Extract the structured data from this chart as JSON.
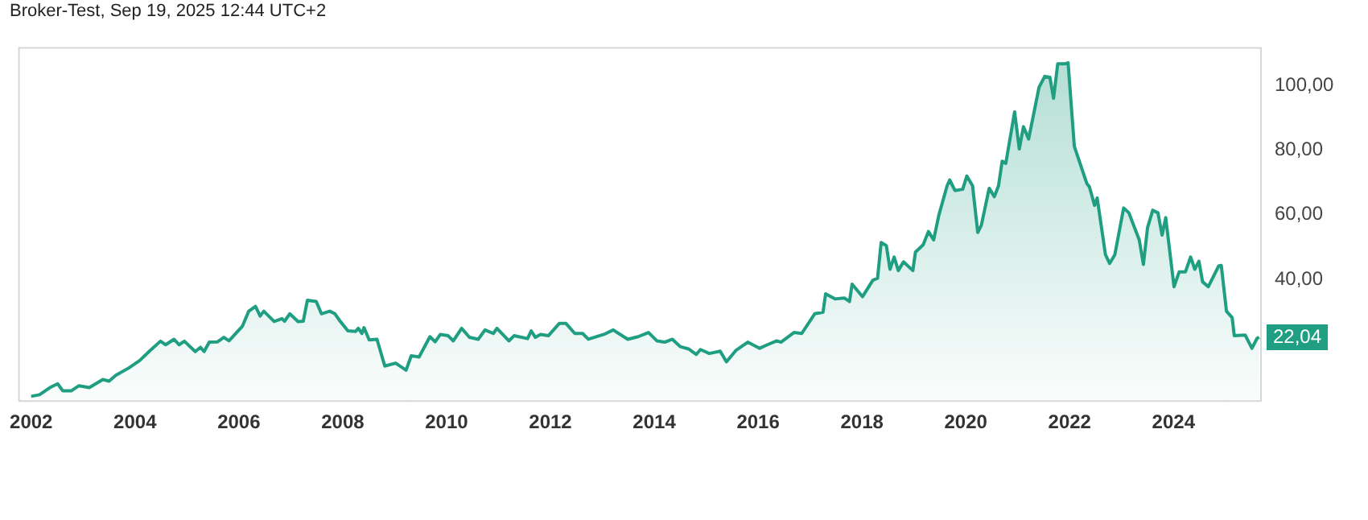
{
  "chart_data": {
    "type": "area",
    "title": "Broker-Test, Sep 19, 2025 12:44 UTC+2",
    "marker": "none",
    "xlim": [
      2001.75,
      2025.7
    ],
    "xticks": [
      2002,
      2004,
      2006,
      2008,
      2010,
      2012,
      2014,
      2016,
      2018,
      2020,
      2022,
      2024
    ],
    "ylim": [
      2,
      112
    ],
    "yticks": [
      {
        "value": 40,
        "label": "40,00"
      },
      {
        "value": 60,
        "label": "60,00"
      },
      {
        "value": 80,
        "label": "80,00"
      },
      {
        "value": 100,
        "label": "100,00"
      }
    ],
    "x": [
      2002.0,
      2002.16,
      2002.36,
      2002.51,
      2002.61,
      2002.77,
      2002.92,
      2003.12,
      2003.38,
      2003.5,
      2003.63,
      2003.88,
      2004.09,
      2004.29,
      2004.49,
      2004.59,
      2004.75,
      2004.85,
      2004.95,
      2005.16,
      2005.26,
      2005.33,
      2005.43,
      2005.59,
      2005.71,
      2005.81,
      2006.07,
      2006.19,
      2006.32,
      2006.41,
      2006.48,
      2006.68,
      2006.83,
      2006.88,
      2006.98,
      2007.14,
      2007.24,
      2007.32,
      2007.49,
      2007.59,
      2007.75,
      2007.85,
      2007.95,
      2008.1,
      2008.25,
      2008.3,
      2008.37,
      2008.41,
      2008.51,
      2008.66,
      2008.81,
      2009.02,
      2009.22,
      2009.32,
      2009.47,
      2009.68,
      2009.78,
      2009.88,
      2010.03,
      2010.13,
      2010.29,
      2010.44,
      2010.61,
      2010.74,
      2010.9,
      2010.97,
      2011.2,
      2011.3,
      2011.56,
      2011.63,
      2011.71,
      2011.81,
      2011.96,
      2012.17,
      2012.3,
      2012.47,
      2012.62,
      2012.73,
      2013.03,
      2013.21,
      2013.49,
      2013.69,
      2013.89,
      2014.05,
      2014.2,
      2014.35,
      2014.5,
      2014.66,
      2014.81,
      2014.89,
      2015.06,
      2015.27,
      2015.39,
      2015.57,
      2015.8,
      2016.03,
      2016.18,
      2016.36,
      2016.44,
      2016.69,
      2016.84,
      2017.09,
      2017.25,
      2017.3,
      2017.48,
      2017.66,
      2017.76,
      2017.81,
      2018.01,
      2018.21,
      2018.3,
      2018.37,
      2018.47,
      2018.54,
      2018.62,
      2018.7,
      2018.8,
      2018.98,
      2019.03,
      2019.18,
      2019.28,
      2019.38,
      2019.48,
      2019.64,
      2019.69,
      2019.79,
      2019.94,
      2020.02,
      2020.13,
      2020.23,
      2020.3,
      2020.45,
      2020.55,
      2020.63,
      2020.7,
      2020.77,
      2020.94,
      2021.03,
      2021.11,
      2021.21,
      2021.41,
      2021.52,
      2021.62,
      2021.69,
      2021.77,
      2021.92,
      2021.97,
      2022.09,
      2022.33,
      2022.38,
      2022.48,
      2022.53,
      2022.69,
      2022.77,
      2022.87,
      2023.04,
      2023.14,
      2023.34,
      2023.42,
      2023.5,
      2023.6,
      2023.7,
      2023.78,
      2023.85,
      2024.01,
      2024.11,
      2024.23,
      2024.33,
      2024.41,
      2024.49,
      2024.56,
      2024.67,
      2024.87,
      2024.92,
      2025.02,
      2025.13,
      2025.17,
      2025.38,
      2025.51,
      2025.61,
      2025.65
    ],
    "series": [
      {
        "color": "#1f9e82",
        "values": [
          3.7,
          4.2,
          6.4,
          7.6,
          5.4,
          5.4,
          7.0,
          6.4,
          8.9,
          8.4,
          10.2,
          12.5,
          14.8,
          17.9,
          20.8,
          19.7,
          21.4,
          19.7,
          20.8,
          17.6,
          18.9,
          17.6,
          20.5,
          20.6,
          22.0,
          20.9,
          25.5,
          30.1,
          31.6,
          28.6,
          30.1,
          26.9,
          27.8,
          27.0,
          29.3,
          26.9,
          27.0,
          33.5,
          33.1,
          29.3,
          30.1,
          29.3,
          27.0,
          24.0,
          23.8,
          24.8,
          23.2,
          25.0,
          21.2,
          21.4,
          13.1,
          14.0,
          11.8,
          16.3,
          15.9,
          22.2,
          20.6,
          22.9,
          22.5,
          20.9,
          24.8,
          22.0,
          21.4,
          24.3,
          23.2,
          24.8,
          20.9,
          22.5,
          21.6,
          24.0,
          22.0,
          22.9,
          22.5,
          26.3,
          26.3,
          23.2,
          23.2,
          21.4,
          22.9,
          24.3,
          21.4,
          22.2,
          23.5,
          20.9,
          20.5,
          21.4,
          19.1,
          18.4,
          16.7,
          18.2,
          17.0,
          17.7,
          14.4,
          17.9,
          20.5,
          18.6,
          19.7,
          20.9,
          20.5,
          23.5,
          23.2,
          29.3,
          29.8,
          35.5,
          33.9,
          34.2,
          33.1,
          38.5,
          34.6,
          39.7,
          40.3,
          51.4,
          50.4,
          43.1,
          46.9,
          42.7,
          45.4,
          42.7,
          48.4,
          50.7,
          54.8,
          52.2,
          59.8,
          69.0,
          70.8,
          67.5,
          67.9,
          72.0,
          69.0,
          54.5,
          56.8,
          68.2,
          65.6,
          69.0,
          76.6,
          75.9,
          91.9,
          80.4,
          87.3,
          83.5,
          99.5,
          102.9,
          102.6,
          96.1,
          106.8,
          106.8,
          107.1,
          81.2,
          69.7,
          68.7,
          62.9,
          65.2,
          47.6,
          44.9,
          47.6,
          62.1,
          60.6,
          52.2,
          44.6,
          56.0,
          61.4,
          60.6,
          53.7,
          59.1,
          37.7,
          42.3,
          42.3,
          46.9,
          43.1,
          45.6,
          39.2,
          37.7,
          44.1,
          44.3,
          30.1,
          28.1,
          22.5,
          22.7,
          18.6,
          21.7,
          22.04
        ]
      }
    ],
    "annotations": [
      "22,04"
    ]
  }
}
